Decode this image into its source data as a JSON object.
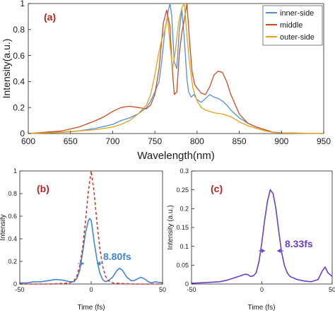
{
  "chart_data": [
    {
      "panel": "(a)",
      "type": "line",
      "xlabel": "Wavelength(nm)",
      "ylabel": "Intensity(a.u.)",
      "xlim": [
        600,
        950
      ],
      "ylim": [
        0,
        1
      ],
      "xticks": [
        600,
        650,
        700,
        750,
        800,
        850,
        900,
        950
      ],
      "yticks": [
        0,
        0.2,
        0.4,
        0.6,
        0.8,
        1
      ],
      "ytick_labels": [
        "0",
        "0.2",
        "0.4",
        "0.6",
        "0.8",
        "1"
      ],
      "legend_position": "top-right",
      "series": [
        {
          "name": "inner-side",
          "color": "#4f8fe0",
          "x": [
            600,
            620,
            640,
            660,
            680,
            700,
            710,
            720,
            730,
            740,
            745,
            750,
            755,
            758,
            762,
            766,
            768,
            770,
            773,
            776,
            779,
            782,
            785,
            788,
            790,
            793,
            796,
            800,
            805,
            810,
            815,
            820,
            825,
            830,
            835,
            840,
            850,
            860,
            870,
            880,
            890,
            900,
            950
          ],
          "y": [
            0,
            0.005,
            0.01,
            0.02,
            0.04,
            0.07,
            0.1,
            0.12,
            0.15,
            0.2,
            0.25,
            0.32,
            0.4,
            0.55,
            0.8,
            0.95,
            1.0,
            0.9,
            0.55,
            0.5,
            0.8,
            0.95,
            0.72,
            0.42,
            0.32,
            0.28,
            0.3,
            0.26,
            0.24,
            0.27,
            0.3,
            0.28,
            0.27,
            0.25,
            0.22,
            0.18,
            0.12,
            0.08,
            0.05,
            0.03,
            0.01,
            0.005,
            0
          ]
        },
        {
          "name": "middle",
          "color": "#d04a1e",
          "x": [
            600,
            620,
            640,
            660,
            680,
            690,
            700,
            710,
            720,
            730,
            740,
            745,
            750,
            755,
            760,
            764,
            768,
            770,
            773,
            776,
            779,
            782,
            785,
            788,
            791,
            794,
            797,
            800,
            805,
            810,
            815,
            820,
            825,
            830,
            835,
            840,
            850,
            860,
            870,
            880,
            890,
            900,
            950
          ],
          "y": [
            0,
            0.01,
            0.02,
            0.05,
            0.1,
            0.13,
            0.17,
            0.2,
            0.21,
            0.2,
            0.19,
            0.22,
            0.3,
            0.5,
            0.85,
            0.95,
            0.82,
            0.55,
            0.3,
            0.32,
            0.62,
            0.78,
            0.88,
            1.0,
            0.72,
            0.48,
            0.38,
            0.35,
            0.31,
            0.3,
            0.36,
            0.45,
            0.48,
            0.47,
            0.4,
            0.3,
            0.15,
            0.08,
            0.05,
            0.03,
            0.01,
            0.005,
            0
          ]
        },
        {
          "name": "outer-side",
          "color": "#e0a216",
          "x": [
            600,
            620,
            640,
            660,
            680,
            700,
            710,
            720,
            730,
            740,
            745,
            750,
            754,
            758,
            762,
            765,
            768,
            771,
            774,
            778,
            782,
            785,
            788,
            791,
            795,
            800,
            805,
            810,
            820,
            830,
            840,
            850,
            860,
            870,
            880,
            890,
            900,
            950
          ],
          "y": [
            0,
            0.005,
            0.01,
            0.02,
            0.03,
            0.05,
            0.07,
            0.1,
            0.15,
            0.22,
            0.3,
            0.45,
            0.6,
            0.72,
            0.8,
            0.9,
            0.68,
            0.5,
            0.62,
            0.85,
            0.97,
            1.0,
            0.75,
            0.55,
            0.35,
            0.25,
            0.2,
            0.18,
            0.16,
            0.15,
            0.13,
            0.09,
            0.06,
            0.04,
            0.02,
            0.01,
            0.005,
            0
          ]
        }
      ]
    },
    {
      "panel": "(b)",
      "type": "line",
      "xlabel": "Time (fs)",
      "ylabel": "Intensity",
      "xlim": [
        -50,
        50
      ],
      "ylim": [
        0,
        1
      ],
      "xticks": [
        -50,
        0,
        50
      ],
      "yticks": [
        0,
        0.2,
        0.4,
        0.6,
        0.8,
        1
      ],
      "ytick_labels": [
        "0",
        "0.2",
        "0.4",
        "0.6",
        "0.8",
        "1"
      ],
      "annotation": "8.80fs",
      "series": [
        {
          "style": "solid",
          "color": "#3f86d8",
          "x": [
            -50,
            -45,
            -40,
            -35,
            -30,
            -25,
            -20,
            -15,
            -12,
            -10,
            -8,
            -6,
            -4,
            -2,
            -1,
            0,
            1,
            2,
            4,
            6,
            8,
            10,
            12,
            15,
            18,
            20,
            22,
            25,
            28,
            30,
            33,
            35,
            38,
            40,
            42,
            45,
            50
          ],
          "y": [
            0.01,
            0.01,
            0.02,
            0.02,
            0.03,
            0.04,
            0.035,
            0.02,
            0.02,
            0.05,
            0.12,
            0.28,
            0.45,
            0.56,
            0.58,
            0.56,
            0.48,
            0.38,
            0.22,
            0.1,
            0.04,
            0.02,
            0.03,
            0.06,
            0.12,
            0.14,
            0.12,
            0.06,
            0.03,
            0.03,
            0.05,
            0.06,
            0.04,
            0.02,
            0.01,
            0.02,
            0.01
          ]
        },
        {
          "style": "dashed",
          "color": "#d83a2e",
          "x": [
            -50,
            -30,
            -20,
            -15,
            -12,
            -10,
            -8,
            -6,
            -4,
            -2,
            0,
            2,
            4,
            6,
            8,
            10,
            12,
            15,
            20,
            30,
            50
          ],
          "y": [
            0,
            0,
            0.005,
            0.01,
            0.03,
            0.07,
            0.16,
            0.32,
            0.55,
            0.82,
            1.0,
            0.82,
            0.55,
            0.32,
            0.16,
            0.07,
            0.03,
            0.01,
            0.005,
            0,
            0
          ]
        }
      ]
    },
    {
      "panel": "(c)",
      "type": "line",
      "xlabel": "Time (fs)",
      "ylabel": "Intensity (a.u.)",
      "xlim": [
        -50,
        50
      ],
      "ylim": [
        0,
        0.3
      ],
      "xticks": [
        -50,
        0,
        50
      ],
      "yticks": [
        0,
        0.05,
        0.1,
        0.15,
        0.2,
        0.25,
        0.3
      ],
      "ytick_labels": [
        "0",
        "0.05",
        "0.1",
        "0.15",
        "0.2",
        "0.25",
        "0.3"
      ],
      "annotation": "8.33fs",
      "series": [
        {
          "style": "solid",
          "color": "#6a3fc8",
          "x": [
            -50,
            -40,
            -30,
            -25,
            -20,
            -15,
            -12,
            -10,
            -8,
            -6,
            -4,
            -2,
            0,
            2,
            4,
            6,
            8,
            10,
            12,
            14,
            16,
            18,
            20,
            25,
            30,
            35,
            40,
            43,
            45,
            47,
            50
          ],
          "y": [
            0.002,
            0.004,
            0.006,
            0.01,
            0.016,
            0.022,
            0.026,
            0.025,
            0.02,
            0.022,
            0.03,
            0.06,
            0.11,
            0.17,
            0.22,
            0.25,
            0.24,
            0.2,
            0.14,
            0.085,
            0.05,
            0.03,
            0.02,
            0.012,
            0.008,
            0.006,
            0.012,
            0.035,
            0.045,
            0.03,
            0.02
          ]
        }
      ]
    }
  ]
}
